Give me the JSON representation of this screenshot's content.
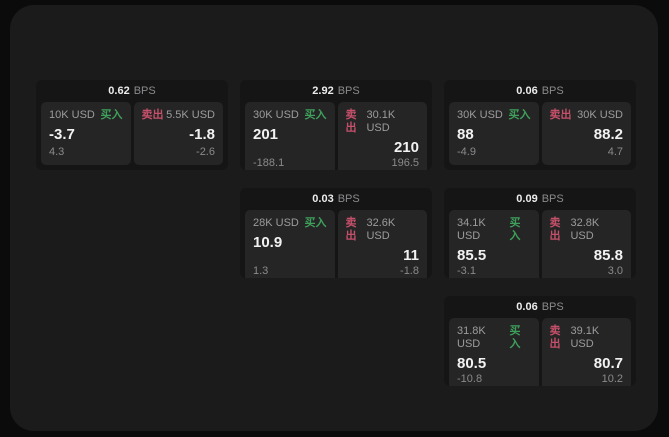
{
  "labels": {
    "bps_suffix": "BPS",
    "buy": "买入",
    "sell": "卖出"
  },
  "colors": {
    "buy_accent": "#3ea05a",
    "sell_accent": "#c4506a",
    "panel_bg": "#1b1b1c",
    "card_bg": "#151516",
    "pane_bg": "#252526"
  },
  "cards": [
    {
      "bps": "0.62",
      "buy": {
        "amount": "10K USD",
        "price": "-3.7",
        "delta": "4.3"
      },
      "sell": {
        "amount": "5.5K USD",
        "price": "-1.8",
        "delta": "-2.6"
      }
    },
    {
      "bps": "2.92",
      "buy": {
        "amount": "30K USD",
        "price": "201",
        "delta": "-188.1"
      },
      "sell": {
        "amount": "30.1K USD",
        "price": "210",
        "delta": "196.5"
      }
    },
    {
      "bps": "0.06",
      "buy": {
        "amount": "30K USD",
        "price": "88",
        "delta": "-4.9"
      },
      "sell": {
        "amount": "30K USD",
        "price": "88.2",
        "delta": "4.7"
      }
    },
    {
      "bps": "0.03",
      "buy": {
        "amount": "28K USD",
        "price": "10.9",
        "delta": "1.3"
      },
      "sell": {
        "amount": "32.6K USD",
        "price": "11",
        "delta": "-1.8"
      }
    },
    {
      "bps": "0.09",
      "buy": {
        "amount": "34.1K USD",
        "price": "85.5",
        "delta": "-3.1"
      },
      "sell": {
        "amount": "32.8K USD",
        "price": "85.8",
        "delta": "3.0"
      }
    },
    {
      "bps": "0.06",
      "buy": {
        "amount": "31.8K USD",
        "price": "80.5",
        "delta": "-10.8"
      },
      "sell": {
        "amount": "39.1K USD",
        "price": "80.7",
        "delta": "10.2"
      }
    }
  ]
}
